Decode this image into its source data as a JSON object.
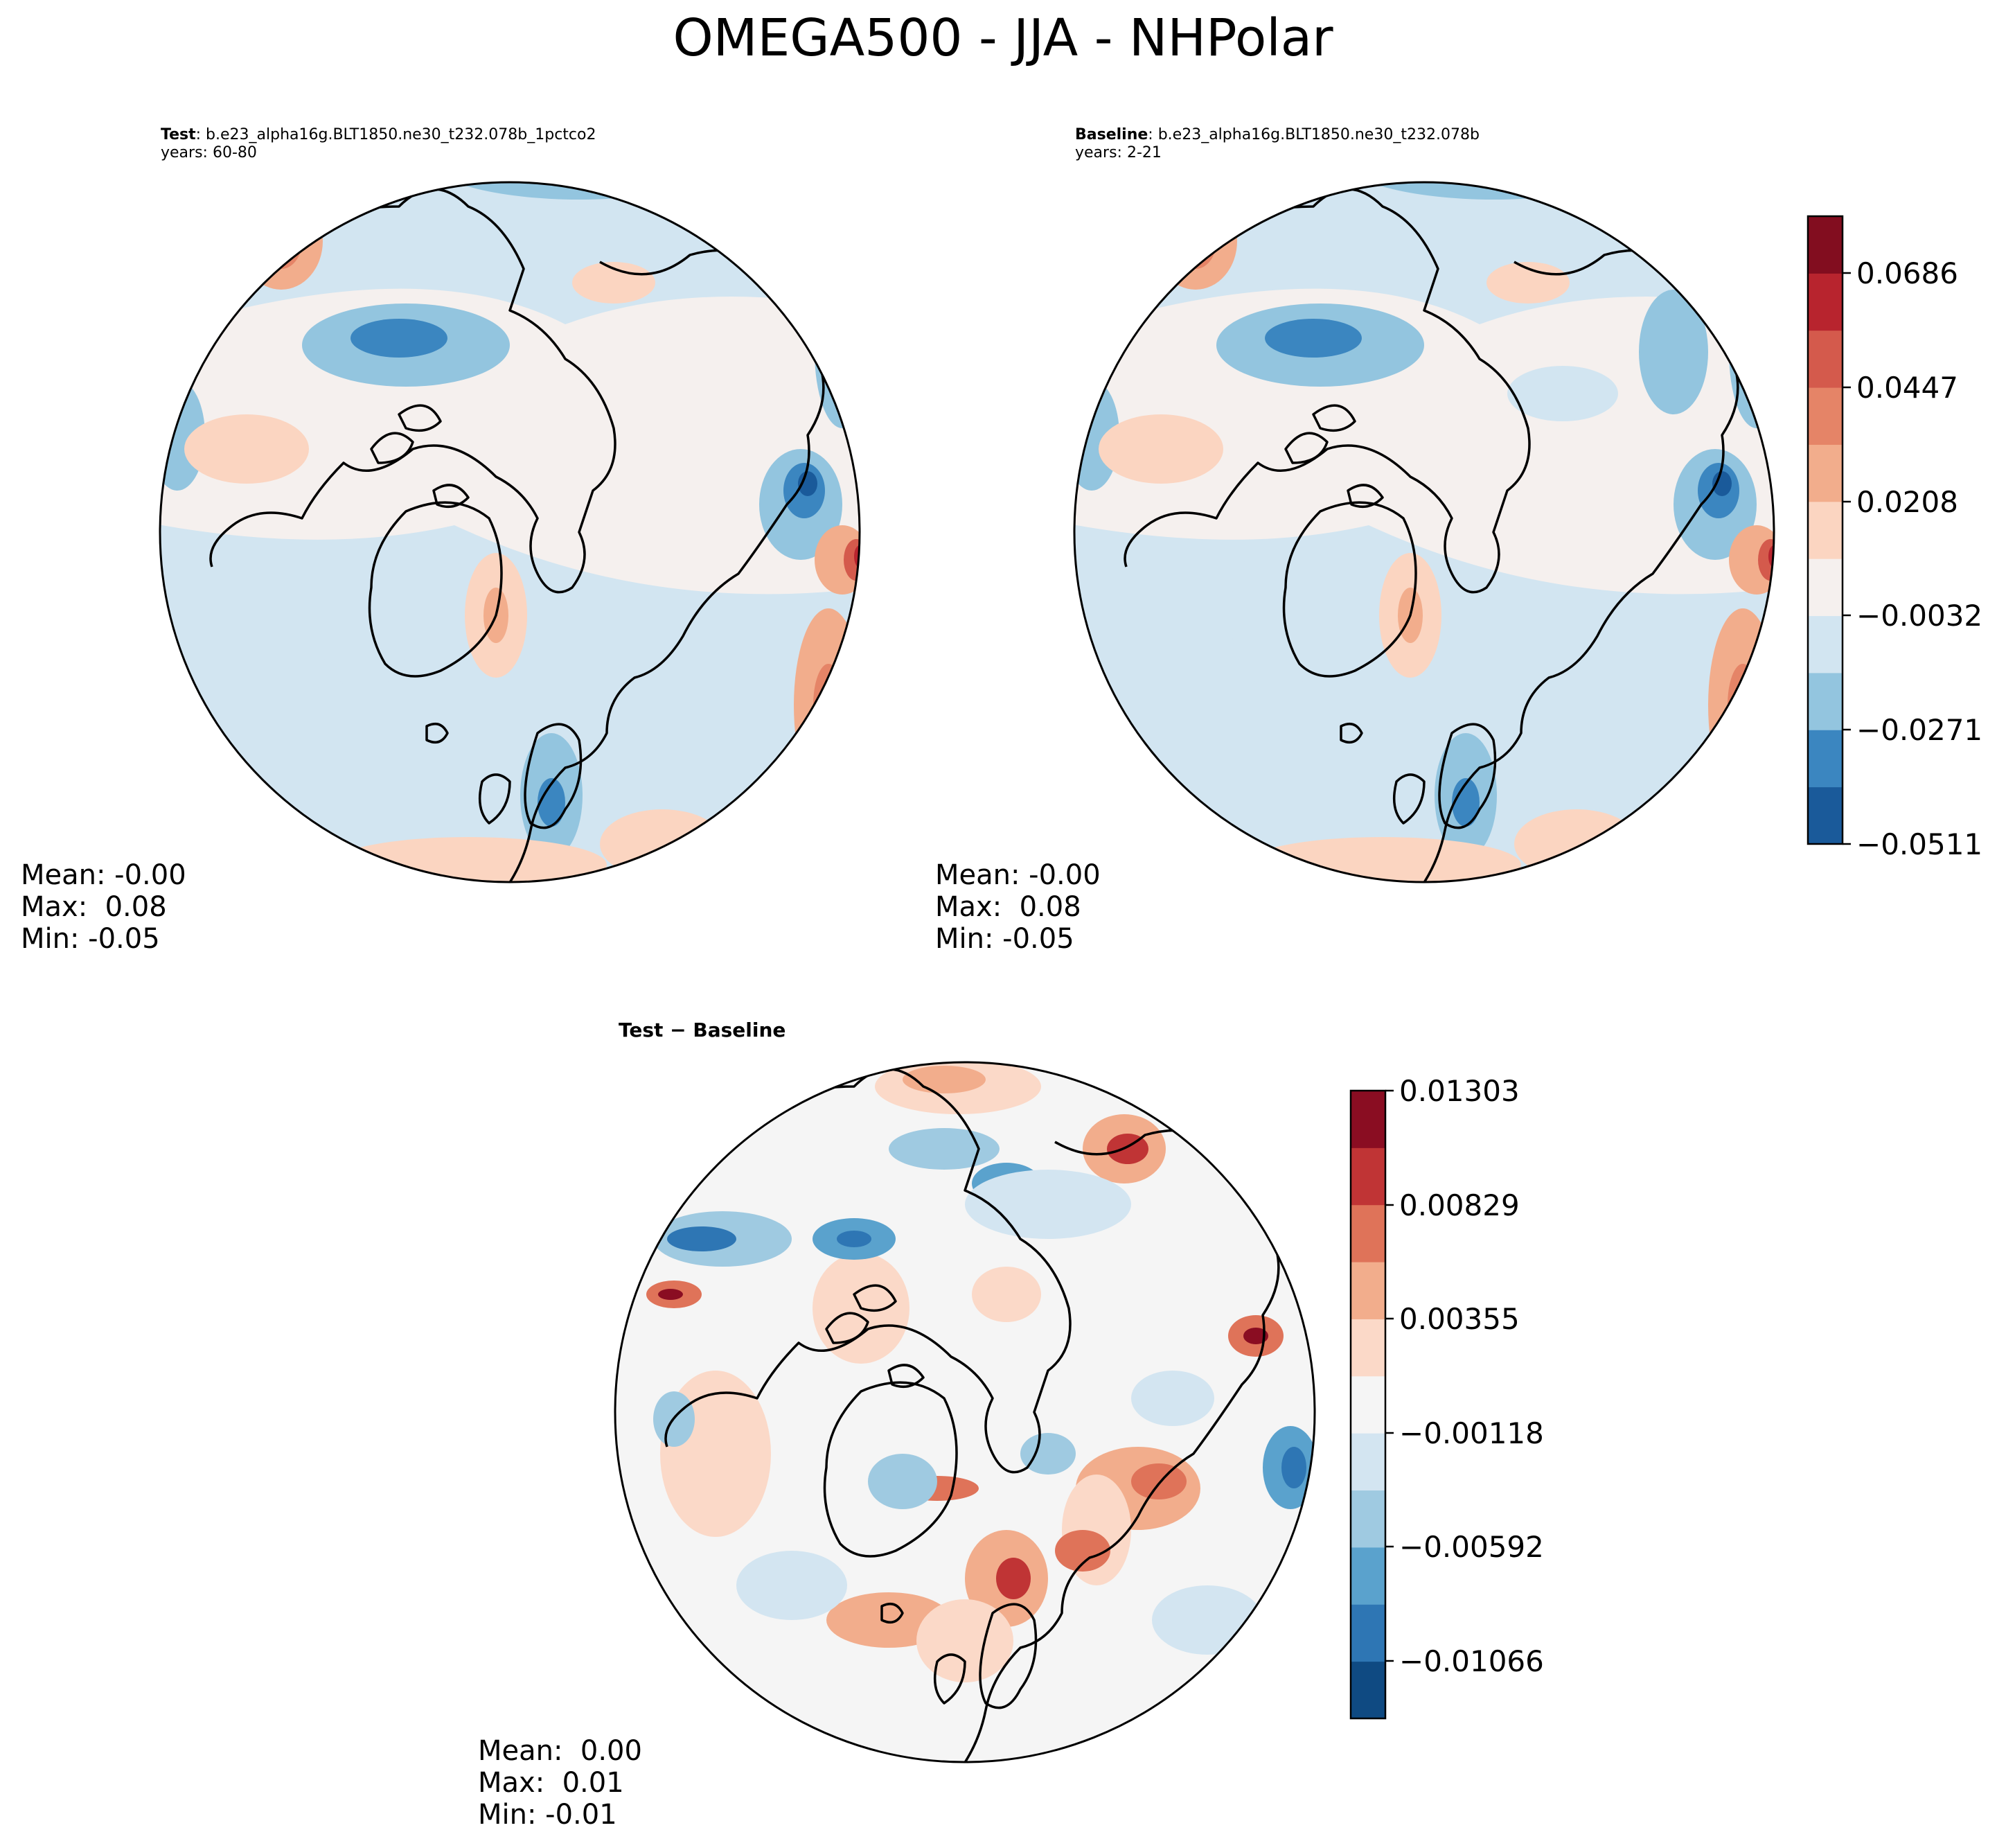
{
  "figure": {
    "title": "OMEGA500 - JJA - NHPolar"
  },
  "panels": {
    "test": {
      "label": "Test",
      "case": ": b.e23_alpha16g.BLT1850.ne30_t232.078b_1pctco2",
      "years": "years: 60-80",
      "stats": {
        "mean": "Mean: -0.00",
        "max": "Max:  0.08",
        "min": "Min: -0.05"
      }
    },
    "baseline": {
      "label": "Baseline",
      "case": ": b.e23_alpha16g.BLT1850.ne30_t232.078b",
      "years": "years: 2-21",
      "stats": {
        "mean": "Mean: -0.00",
        "max": "Max:  0.08",
        "min": "Min: -0.05"
      }
    },
    "diff": {
      "title": "Test − Baseline",
      "stats": {
        "mean": "Mean:  0.00",
        "max": "Max:  0.01",
        "min": "Min: -0.01"
      }
    }
  },
  "colorbars": {
    "main": {
      "ticks": [
        "0.0686",
        "0.0447",
        "0.0208",
        "−0.0032",
        "−0.0271",
        "−0.0511"
      ],
      "colors": [
        "#1a5a9a",
        "#3b86c0",
        "#93c5df",
        "#d2e5f1",
        "#f5f0ee",
        "#fbd5c1",
        "#f2ad8c",
        "#e58467",
        "#d45a4c",
        "#b8242e",
        "#820d1f"
      ]
    },
    "diff": {
      "ticks": [
        "0.01303",
        "0.00829",
        "0.00355",
        "−0.00118",
        "−0.00592",
        "−0.01066"
      ],
      "colors": [
        "#0f4a82",
        "#2e76b4",
        "#5aa2cd",
        "#9fcae1",
        "#d3e5f1",
        "#f5f5f5",
        "#fbd9c8",
        "#f2ad8c",
        "#df7359",
        "#c03435",
        "#8a0d22"
      ]
    }
  },
  "chart_data": [
    {
      "type": "heatmap",
      "title": "Test",
      "projection": "north-polar-stereographic",
      "variable": "OMEGA500",
      "season": "JJA",
      "stats": {
        "mean": -0.0,
        "max": 0.08,
        "min": -0.05
      },
      "levels": [
        -0.0511,
        -0.0271,
        -0.0032,
        0.0208,
        0.0447,
        0.0686
      ]
    },
    {
      "type": "heatmap",
      "title": "Baseline",
      "projection": "north-polar-stereographic",
      "variable": "OMEGA500",
      "season": "JJA",
      "stats": {
        "mean": -0.0,
        "max": 0.08,
        "min": -0.05
      },
      "levels": [
        -0.0511,
        -0.0271,
        -0.0032,
        0.0208,
        0.0447,
        0.0686
      ]
    },
    {
      "type": "heatmap",
      "title": "Test − Baseline",
      "projection": "north-polar-stereographic",
      "stats": {
        "mean": 0.0,
        "max": 0.01,
        "min": -0.01
      },
      "levels": [
        -0.01066,
        -0.00592,
        -0.00118,
        0.00355,
        0.00829,
        0.01303
      ]
    }
  ]
}
